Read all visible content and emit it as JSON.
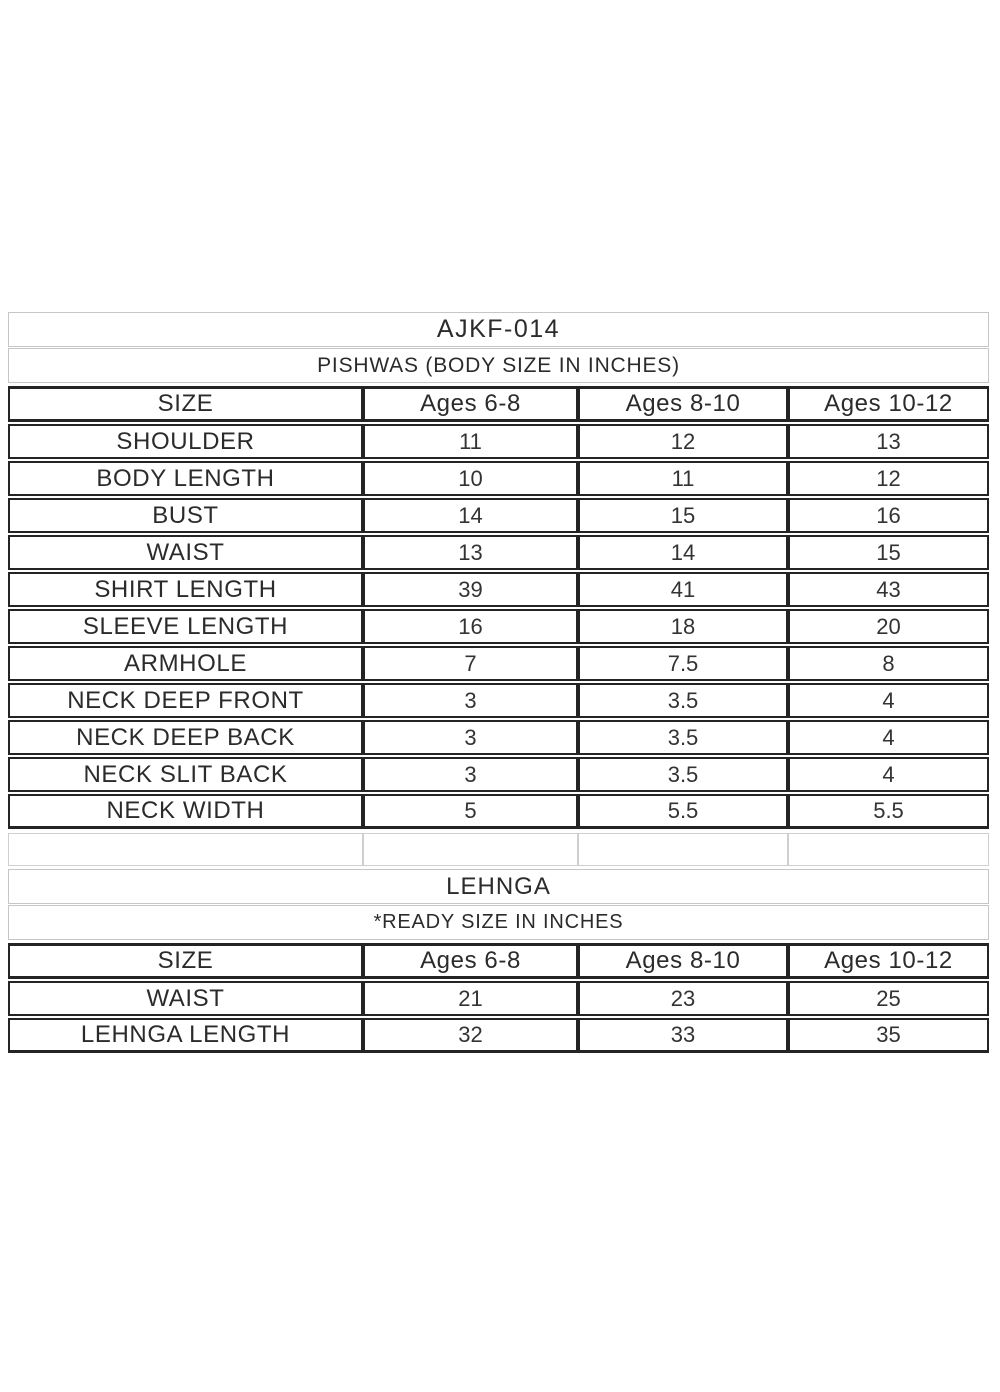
{
  "header": {
    "product_code": "AJKF-014"
  },
  "pishwas": {
    "subtitle": "PISHWAS (BODY SIZE IN INCHES)",
    "columns": [
      "SIZE",
      "Ages 6-8",
      "Ages 8-10",
      "Ages 10-12"
    ],
    "rows": [
      {
        "label": "SHOULDER",
        "values": [
          "11",
          "12",
          "13"
        ]
      },
      {
        "label": "BODY LENGTH",
        "values": [
          "10",
          "11",
          "12"
        ]
      },
      {
        "label": "BUST",
        "values": [
          "14",
          "15",
          "16"
        ]
      },
      {
        "label": "WAIST",
        "values": [
          "13",
          "14",
          "15"
        ]
      },
      {
        "label": "SHIRT LENGTH",
        "values": [
          "39",
          "41",
          "43"
        ]
      },
      {
        "label": "SLEEVE LENGTH",
        "values": [
          "16",
          "18",
          "20"
        ]
      },
      {
        "label": "ARMHOLE",
        "values": [
          "7",
          "7.5",
          "8"
        ]
      },
      {
        "label": "NECK DEEP FRONT",
        "values": [
          "3",
          "3.5",
          "4"
        ]
      },
      {
        "label": "NECK DEEP BACK",
        "values": [
          "3",
          "3.5",
          "4"
        ]
      },
      {
        "label": "NECK SLIT BACK",
        "values": [
          "3",
          "3.5",
          "4"
        ]
      },
      {
        "label": "NECK WIDTH",
        "values": [
          "5",
          "5.5",
          "5.5"
        ]
      }
    ]
  },
  "lehnga": {
    "title": "LEHNGA",
    "subtitle": "*READY SIZE IN INCHES",
    "columns": [
      "SIZE",
      "Ages 6-8",
      "Ages 8-10",
      "Ages 10-12"
    ],
    "rows": [
      {
        "label": "WAIST",
        "values": [
          "21",
          "23",
          "25"
        ]
      },
      {
        "label": "LEHNGA LENGTH",
        "values": [
          "32",
          "33",
          "35"
        ]
      }
    ]
  },
  "colors": {
    "border_dark": "#242424",
    "border_light": "#c6c6c6",
    "text": "#2b2b2b",
    "background": "#ffffff"
  }
}
